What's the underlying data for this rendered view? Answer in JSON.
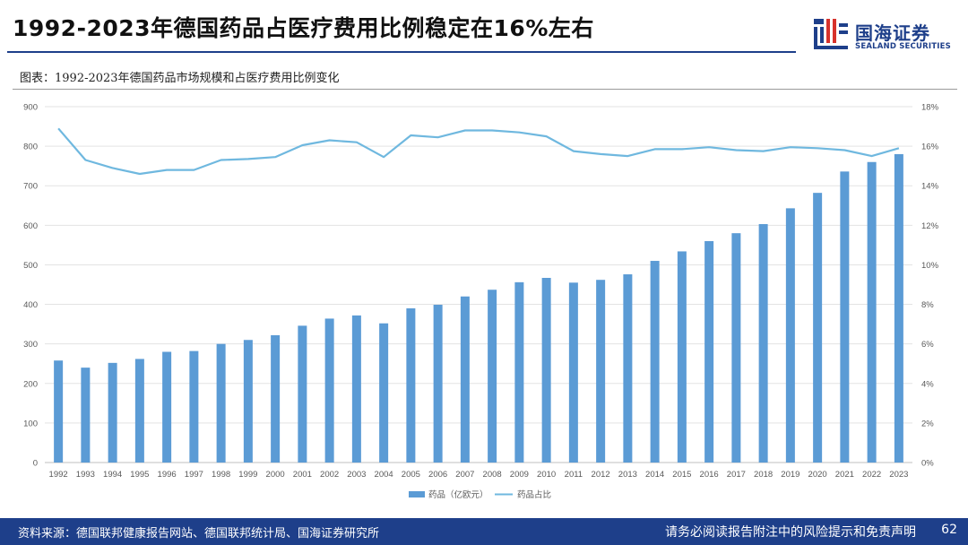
{
  "header": {
    "title": "1992-2023年德国药品占医疗费用比例稳定在16%左右",
    "logo_cn": "国海证券",
    "logo_en": "SEALAND SECURITIES"
  },
  "figure_caption": "图表：1992-2023年德国药品市场规模和占医疗费用比例变化",
  "footer": {
    "source": "资料来源：德国联邦健康报告网站、德国联邦统计局、国海证券研究所",
    "disclaimer": "请务必阅读报告附注中的风险提示和免责声明",
    "page_number": "62"
  },
  "colors": {
    "brand": "#1e3f8a",
    "bar": "#5b9bd5",
    "line": "#6fb8df"
  },
  "chart_data": {
    "type": "bar",
    "title": "",
    "categories": [
      "1992",
      "1993",
      "1994",
      "1995",
      "1996",
      "1997",
      "1998",
      "1999",
      "2000",
      "2001",
      "2002",
      "2003",
      "2004",
      "2005",
      "2006",
      "2007",
      "2008",
      "2009",
      "2010",
      "2011",
      "2012",
      "2013",
      "2014",
      "2015",
      "2016",
      "2017",
      "2018",
      "2019",
      "2020",
      "2021",
      "2022",
      "2023"
    ],
    "series": [
      {
        "name": "药品（亿欧元）",
        "type": "bar",
        "axis": "left",
        "values": [
          258,
          240,
          252,
          262,
          280,
          282,
          300,
          310,
          322,
          346,
          364,
          372,
          352,
          390,
          399,
          420,
          437,
          456,
          467,
          455,
          462,
          476,
          510,
          534,
          560,
          580,
          603,
          643,
          682,
          736,
          760,
          780
        ]
      },
      {
        "name": "药品占比",
        "type": "line",
        "axis": "right",
        "unit": "%",
        "values": [
          16.9,
          15.3,
          14.9,
          14.6,
          14.8,
          14.8,
          15.3,
          15.35,
          15.45,
          16.05,
          16.3,
          16.2,
          15.45,
          16.55,
          16.45,
          16.8,
          16.8,
          16.7,
          16.5,
          15.75,
          15.6,
          15.5,
          15.85,
          15.85,
          15.95,
          15.8,
          15.75,
          15.95,
          15.9,
          15.8,
          15.5,
          15.9
        ]
      }
    ],
    "y_left": {
      "min": 0,
      "max": 900,
      "step": 100,
      "ticks": [
        "0",
        "100",
        "200",
        "300",
        "400",
        "500",
        "600",
        "700",
        "800",
        "900"
      ]
    },
    "y_right": {
      "min": 0,
      "max": 18,
      "step": 2,
      "ticks": [
        "0%",
        "2%",
        "4%",
        "6%",
        "8%",
        "10%",
        "12%",
        "14%",
        "16%",
        "18%"
      ]
    },
    "grid": true,
    "legend_position": "bottom-center"
  }
}
